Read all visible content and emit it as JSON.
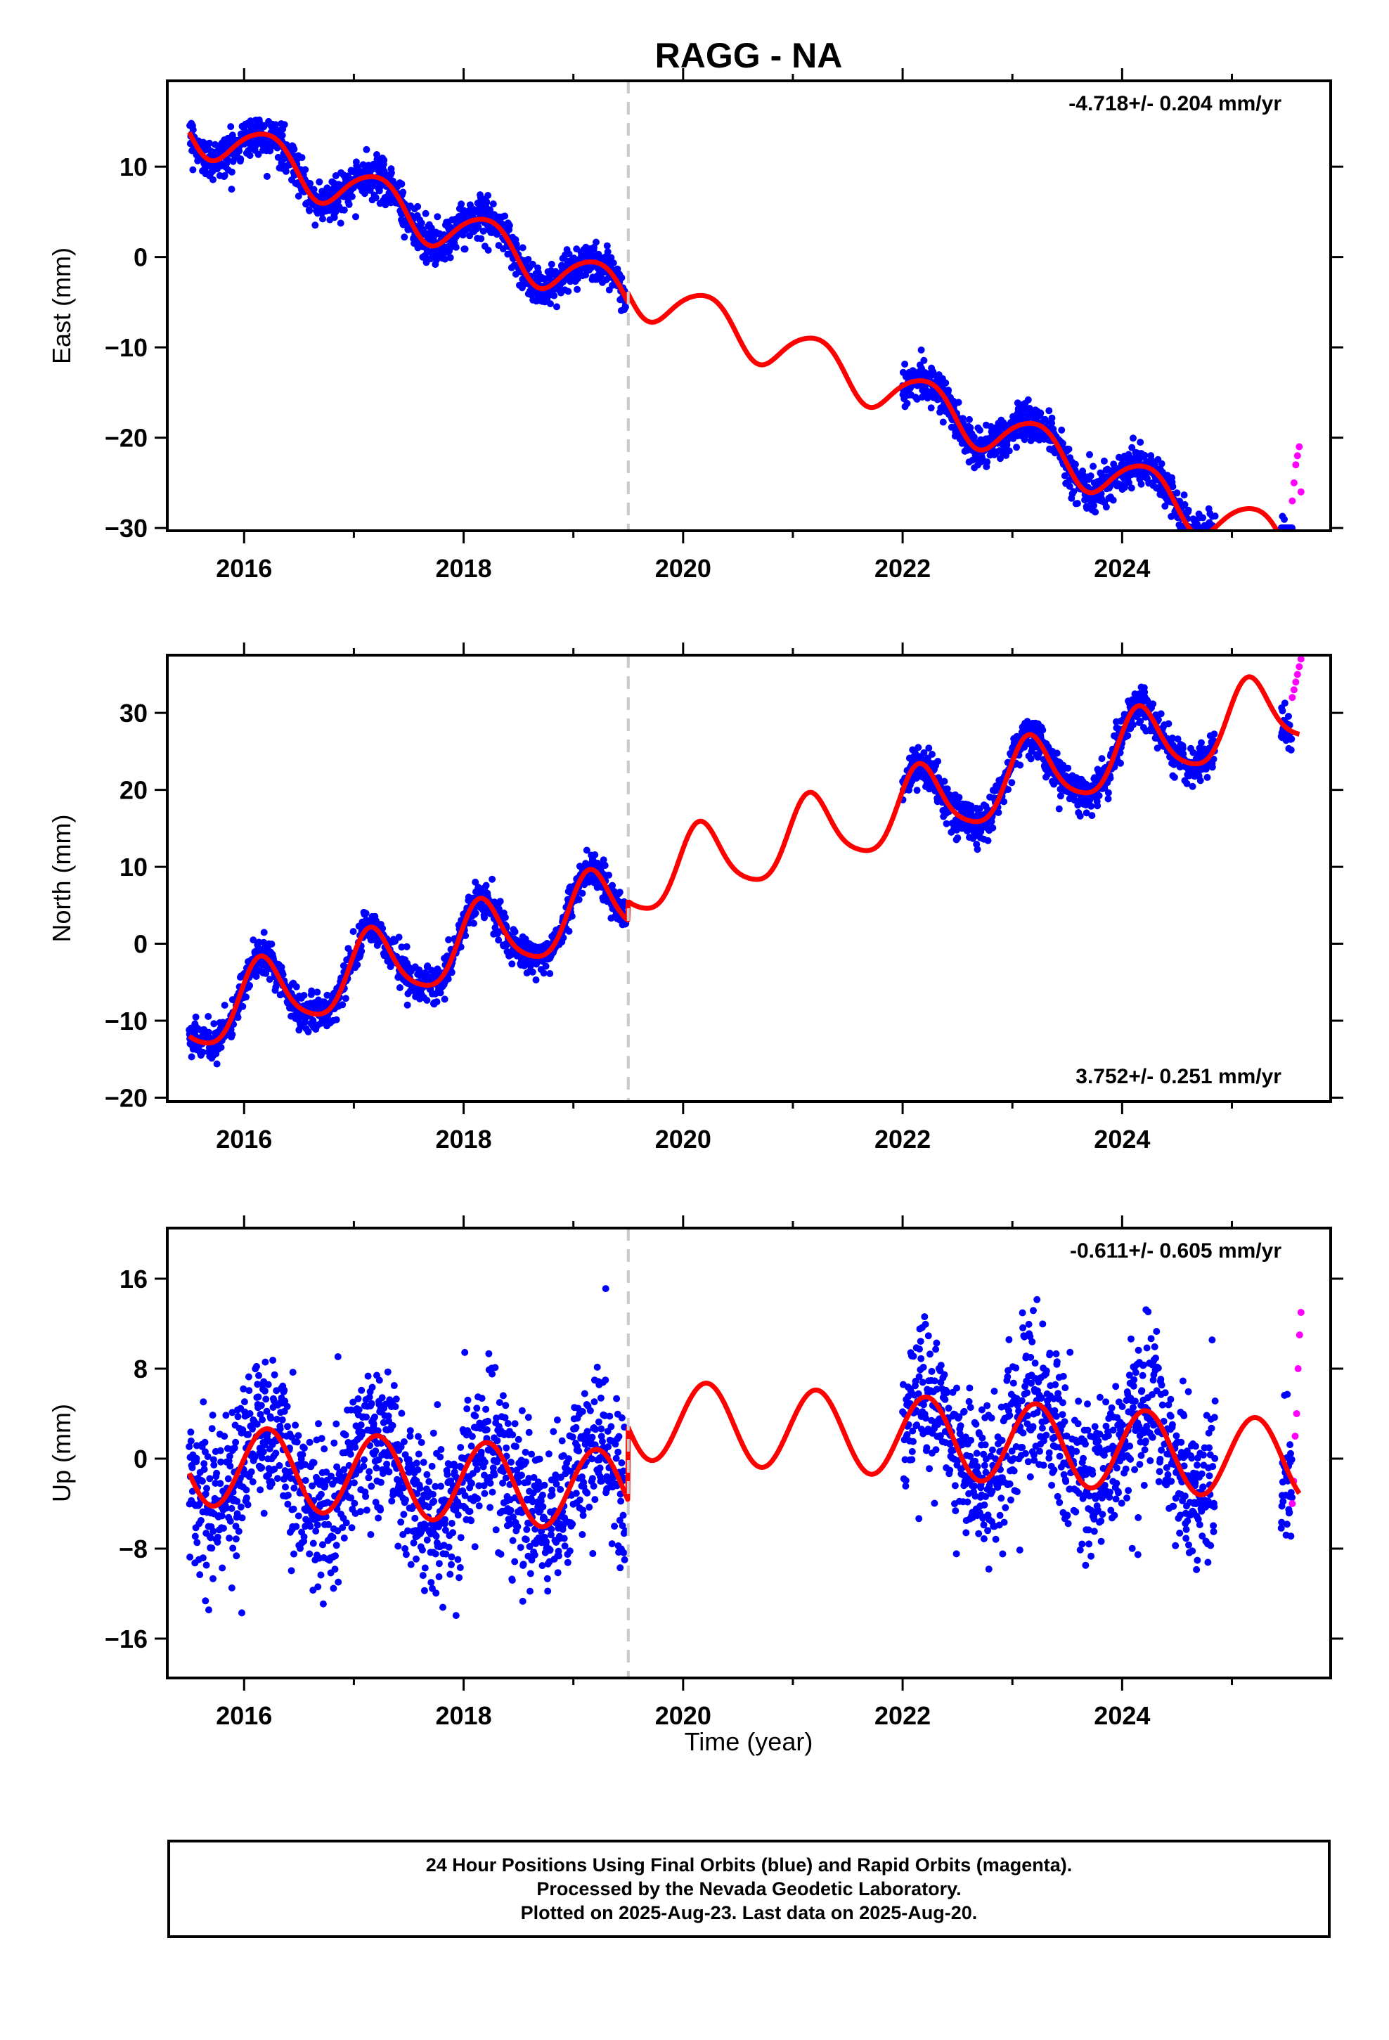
{
  "chart_data": {
    "title": "RAGG - NA",
    "colors": {
      "final_orbits": "#0000ff",
      "rapid_orbits": "#ff00ff",
      "model_fit": "#ff0000",
      "discontinuity": "#c8c8c8"
    },
    "x_axis": {
      "label": "Time (year)",
      "range": [
        2015.3,
        2025.9
      ],
      "major_ticks": [
        2016,
        2018,
        2020,
        2022,
        2024
      ],
      "minor_ticks": [
        2017,
        2019,
        2021,
        2023,
        2025
      ]
    },
    "discontinuity_year": 2019.5,
    "data_spans": {
      "final_segments": [
        [
          2015.5,
          2019.48
        ],
        [
          2022.0,
          2024.85
        ],
        [
          2025.45,
          2025.55
        ]
      ],
      "rapid_span": [
        2025.55,
        2025.63
      ]
    },
    "panels": [
      {
        "type": "scatter",
        "component": "east",
        "ylabel": "East (mm)",
        "ylim": [
          -30.3,
          19.5
        ],
        "yticks": [
          -30,
          -20,
          -10,
          0,
          10
        ],
        "ytick_labels": [
          "−30",
          "−20",
          "−10",
          "0",
          "10"
        ],
        "rate_label": "-4.718+/- 0.204 mm/yr",
        "rate_position": "top-right",
        "model": {
          "rate": -4.718,
          "ref_year": 2015.5,
          "offset": 14.5,
          "annual": {
            "sin": 2.5,
            "cos": 0.8
          },
          "semiannual": {
            "sin": -0.3,
            "cos": 0.1
          },
          "step": 1.0,
          "noise_sd": 1.1
        },
        "rapid_values": [
          -27,
          -25,
          -23,
          -22,
          -21,
          -26
        ]
      },
      {
        "type": "scatter",
        "component": "north",
        "ylabel": "North (mm)",
        "ylim": [
          -20.5,
          37.5
        ],
        "yticks": [
          -20,
          -10,
          0,
          10,
          20,
          30
        ],
        "ytick_labels": [
          "−20",
          "−10",
          "0",
          "10",
          "20",
          "30"
        ],
        "rate_label": "3.752+/- 0.251 mm/yr",
        "rate_position": "bottom-right",
        "model": {
          "rate": 3.752,
          "ref_year": 2015.5,
          "offset": -9.5,
          "annual": {
            "sin": 4.0,
            "cos": 2.5
          },
          "semiannual": {
            "sin": 0.8,
            "cos": 0.0
          },
          "step": 2.5,
          "noise_sd": 1.2
        },
        "rapid_values": [
          32,
          33,
          34,
          35,
          36,
          37
        ]
      },
      {
        "type": "scatter",
        "component": "up",
        "ylabel": "Up (mm)",
        "ylim": [
          -19.5,
          20.5
        ],
        "yticks": [
          -16,
          -8,
          0,
          8,
          16
        ],
        "ytick_labels": [
          "−16",
          "−8",
          "0",
          "8",
          "16"
        ],
        "rate_label": "-0.611+/- 0.605 mm/yr",
        "rate_position": "top-right",
        "model": {
          "rate": -0.611,
          "ref_year": 2015.5,
          "offset": -0.5,
          "annual": {
            "sin": 3.5,
            "cos": 0.8
          },
          "semiannual": {
            "sin": 0.0,
            "cos": 0.0
          },
          "step": 6.5,
          "noise_sd": 3.3
        },
        "rapid_values": [
          -4,
          -2,
          2,
          4,
          8,
          11,
          13
        ]
      }
    ]
  },
  "caption": {
    "line1": "24 Hour Positions Using Final Orbits (blue) and Rapid Orbits (magenta).",
    "line2": "Processed by the Nevada Geodetic Laboratory.",
    "line3": "Plotted on 2025-Aug-23. Last data on 2025-Aug-20."
  }
}
